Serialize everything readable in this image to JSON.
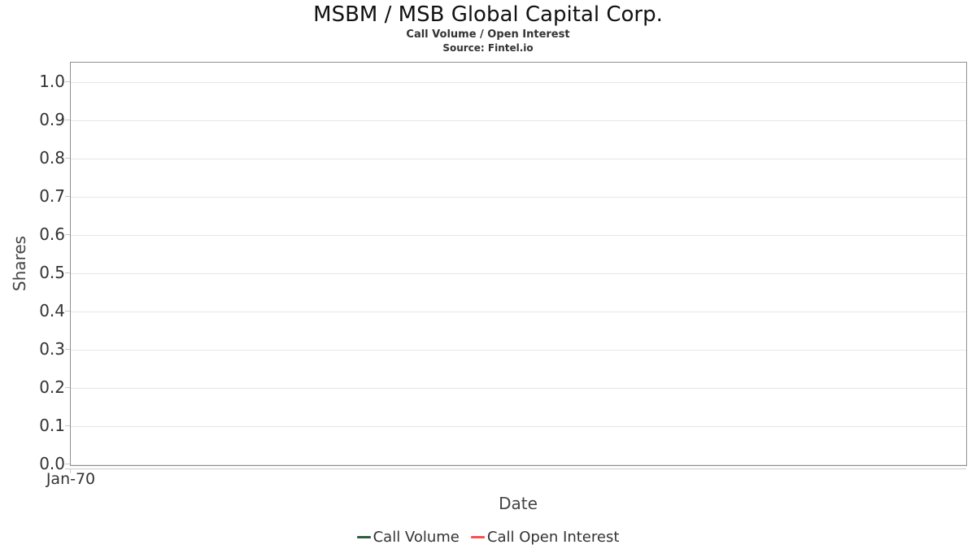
{
  "chart_data": {
    "type": "line",
    "title": "MSBM / MSB Global Capital Corp.",
    "subtitle": "Call Volume / Open Interest",
    "source": "Source: Fintel.io",
    "xlabel": "Date",
    "ylabel": "Shares",
    "x_ticks": [
      "Jan-70"
    ],
    "y_ticks": [
      "0.0",
      "0.1",
      "0.2",
      "0.3",
      "0.4",
      "0.5",
      "0.6",
      "0.7",
      "0.8",
      "0.9",
      "1.0"
    ],
    "ylim": [
      0.0,
      1.05
    ],
    "grid": true,
    "legend_position": "bottom",
    "series": [
      {
        "name": "Call Volume",
        "color": "#2d5f3e",
        "values": []
      },
      {
        "name": "Call Open Interest",
        "color": "#f95050",
        "values": []
      }
    ]
  },
  "colors": {
    "plot_border": "#8f8f8f",
    "gridline": "#e6e6e6",
    "axis_line": "#cccccc",
    "text_dark": "#111111",
    "text_gray": "#333333"
  }
}
